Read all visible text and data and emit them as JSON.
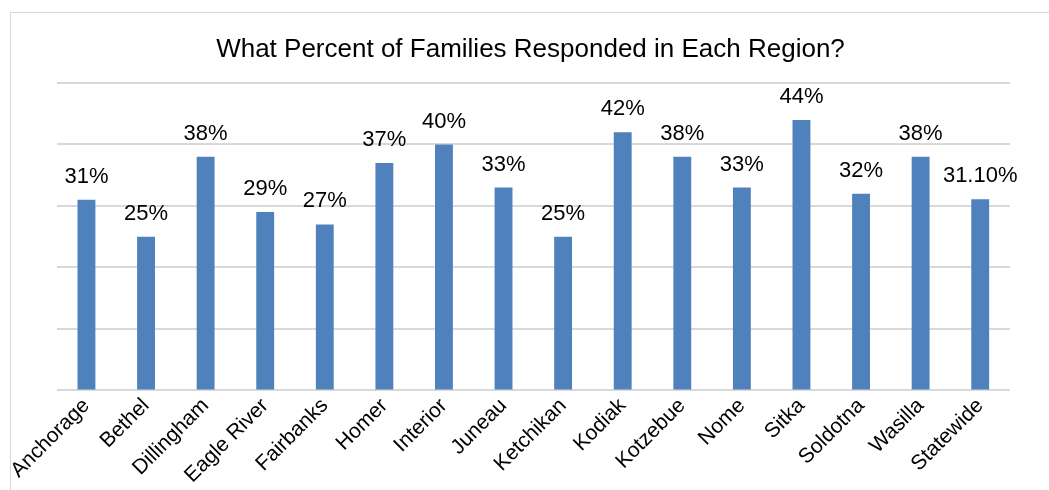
{
  "chart_data": {
    "type": "bar",
    "title": "What Percent of Families Responded in Each Region?",
    "categories": [
      "Anchorage",
      "Bethel",
      "Dillingham",
      "Eagle River",
      "Fairbanks",
      "Homer",
      "Interior",
      "Juneau",
      "Ketchikan",
      "Kodiak",
      "Kotzebue",
      "Nome",
      "Sitka",
      "Soldotna",
      "Wasilla",
      "Statewide"
    ],
    "values": [
      31,
      25,
      38,
      29,
      27,
      37,
      40,
      33,
      25,
      42,
      38,
      33,
      44,
      32,
      38,
      31.1
    ],
    "value_labels": [
      "31%",
      "25%",
      "38%",
      "29%",
      "27%",
      "37%",
      "40%",
      "33%",
      "25%",
      "42%",
      "38%",
      "33%",
      "44%",
      "32%",
      "38%",
      "31.10%"
    ],
    "color": "#4f81bd",
    "ylim": [
      0,
      50
    ],
    "yticks": [
      {
        "value": 0,
        "label": null
      },
      {
        "value": 10,
        "label": null
      },
      {
        "value": 20,
        "label": null
      },
      {
        "value": 30,
        "label": null
      },
      {
        "value": 40,
        "label": null
      },
      {
        "value": 50,
        "label": null
      }
    ],
    "grid": "y",
    "tick_labels": "x",
    "legend": false
  }
}
